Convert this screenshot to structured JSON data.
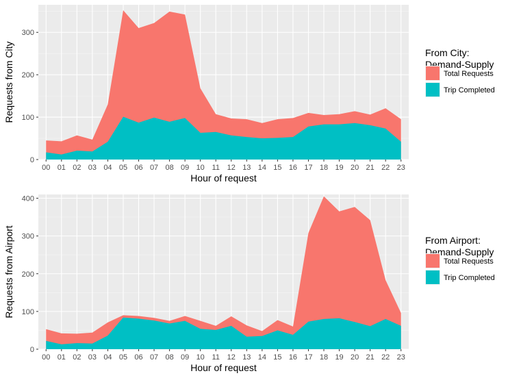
{
  "chart_data": [
    {
      "type": "area",
      "stacking": "overlay",
      "xlabel": "Hour of request",
      "ylabel": "Requests from City",
      "ylim": [
        0,
        365
      ],
      "yticks": [
        0,
        100,
        200,
        300
      ],
      "grid": true,
      "legend_title": [
        "From City:",
        "Demand-Supply"
      ],
      "legend_position": "right",
      "x": [
        "00",
        "01",
        "02",
        "03",
        "04",
        "05",
        "06",
        "07",
        "08",
        "09",
        "10",
        "11",
        "12",
        "13",
        "14",
        "15",
        "16",
        "17",
        "18",
        "19",
        "20",
        "21",
        "22",
        "23"
      ],
      "series": [
        {
          "name": "Total Requests",
          "color": "#F8766D",
          "values": [
            45,
            43,
            57,
            47,
            130,
            352,
            310,
            322,
            349,
            342,
            168,
            107,
            97,
            95,
            86,
            95,
            98,
            110,
            105,
            107,
            114,
            106,
            121,
            95
          ]
        },
        {
          "name": "Trip Completed",
          "color": "#00BFC4",
          "values": [
            17,
            12,
            21,
            19,
            42,
            101,
            87,
            99,
            89,
            98,
            63,
            65,
            57,
            53,
            50,
            51,
            53,
            78,
            83,
            83,
            86,
            81,
            73,
            42
          ]
        }
      ]
    },
    {
      "type": "area",
      "stacking": "overlay",
      "xlabel": "Hour of request",
      "ylabel": "Requests from Airport",
      "ylim": [
        0,
        410
      ],
      "yticks": [
        0,
        100,
        200,
        300,
        400
      ],
      "grid": true,
      "legend_title": [
        "From Airport:",
        "Demand-Supply"
      ],
      "legend_position": "right",
      "x": [
        "00",
        "01",
        "02",
        "03",
        "04",
        "05",
        "06",
        "07",
        "08",
        "09",
        "10",
        "11",
        "12",
        "13",
        "14",
        "15",
        "16",
        "17",
        "18",
        "19",
        "20",
        "21",
        "22",
        "23"
      ],
      "series": [
        {
          "name": "Total Requests",
          "color": "#F8766D",
          "values": [
            53,
            42,
            41,
            44,
            71,
            90,
            88,
            83,
            75,
            88,
            75,
            62,
            87,
            63,
            48,
            77,
            60,
            308,
            405,
            365,
            377,
            342,
            183,
            96
          ]
        },
        {
          "name": "Trip Completed",
          "color": "#00BFC4",
          "values": [
            22,
            13,
            16,
            15,
            36,
            84,
            81,
            76,
            68,
            75,
            54,
            51,
            62,
            33,
            35,
            50,
            38,
            73,
            80,
            82,
            72,
            61,
            80,
            62
          ]
        }
      ]
    }
  ]
}
